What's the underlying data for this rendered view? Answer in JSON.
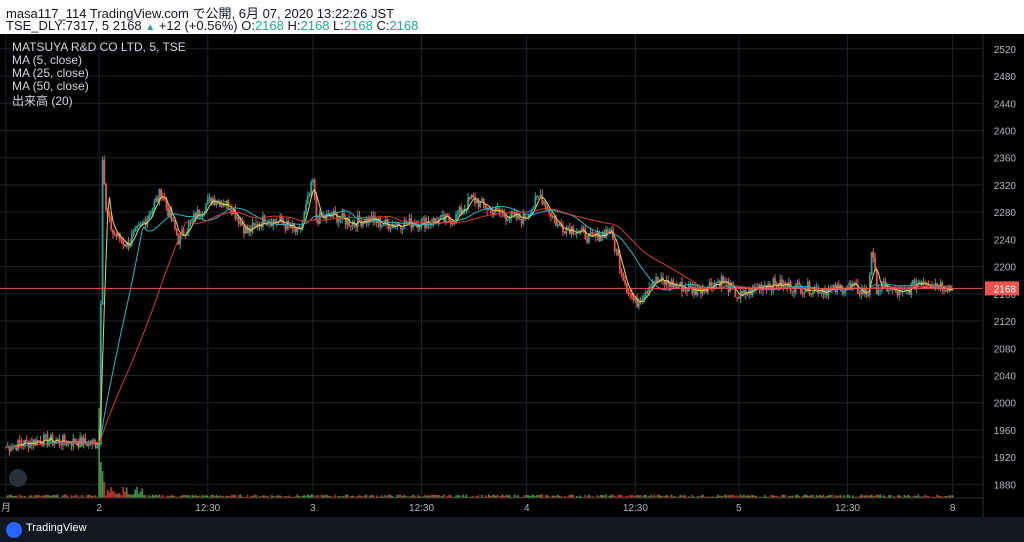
{
  "header": {
    "user": "masa117_114",
    "site": "TradingView.com",
    "published_text": "で公開, 6月 07, 2020 13:22:26 JST",
    "symbol": "TSE_DLY:7317, 5",
    "last": "2168",
    "change": "+12 (+0.56%)",
    "o_label": "O:",
    "o_value": "2168",
    "h_label": "H:",
    "h_value": "2168",
    "l_label": "L:",
    "l_value": "2168",
    "c_label": "C:",
    "c_value": "2168"
  },
  "legend": {
    "title": "MATSUYA R&D CO LTD, 5, TSE",
    "ma5": "MA (5, close)",
    "ma25": "MA (25, close)",
    "ma50": "MA (50, close)",
    "volume": "出来高 (20)"
  },
  "price_label": "2168",
  "footer": {
    "brand": "TradingView"
  },
  "colors": {
    "up": "#26a69a",
    "down": "#ef5350",
    "ma5": "#e8d44d",
    "ma25": "#26b5c9",
    "ma50": "#d8392b",
    "vol_up": "#4caf50",
    "vol_down": "#e53935",
    "price_line": "#ef5350"
  },
  "chart_data": {
    "type": "candlestick",
    "y_ticks": [
      1880,
      1920,
      1960,
      2000,
      2040,
      2080,
      2120,
      2160,
      2200,
      2240,
      2280,
      2320,
      2360,
      2400,
      2440,
      2480,
      2520
    ],
    "ylim": [
      1860,
      2530
    ],
    "x_ticks": [
      {
        "label": "月",
        "t": 0
      },
      {
        "label": "2",
        "t": 54
      },
      {
        "label": "12:30",
        "t": 117
      },
      {
        "label": "3",
        "t": 178
      },
      {
        "label": "12:30",
        "t": 241
      },
      {
        "label": "4",
        "t": 302
      },
      {
        "label": "12:30",
        "t": 365
      },
      {
        "label": "5",
        "t": 425
      },
      {
        "label": "12:30",
        "t": 488
      },
      {
        "label": "8",
        "t": 549
      }
    ],
    "xlim": [
      0,
      555
    ],
    "last_price": 2168,
    "segments": {
      "times": [
        0,
        20,
        40,
        54,
        56,
        58,
        62,
        70,
        80,
        90,
        100,
        110,
        120,
        130,
        140,
        150,
        160,
        170,
        178,
        180,
        190,
        200,
        210,
        220,
        240,
        260,
        270,
        280,
        290,
        300,
        310,
        320,
        330,
        340,
        350,
        360,
        365,
        375,
        385,
        400,
        415,
        425,
        440,
        460,
        480,
        488,
        500,
        502,
        505,
        510,
        520,
        530,
        540,
        549
      ],
      "close": [
        1935,
        1945,
        1942,
        1940,
        2365,
        2280,
        2250,
        2232,
        2265,
        2310,
        2240,
        2275,
        2300,
        2290,
        2250,
        2270,
        2265,
        2248,
        2325,
        2270,
        2275,
        2265,
        2270,
        2262,
        2265,
        2270,
        2300,
        2285,
        2275,
        2270,
        2305,
        2260,
        2255,
        2240,
        2255,
        2170,
        2145,
        2180,
        2175,
        2165,
        2180,
        2155,
        2175,
        2170,
        2165,
        2172,
        2160,
        2225,
        2168,
        2170,
        2158,
        2180,
        2175,
        2168
      ]
    },
    "moving_averages": [
      {
        "name": "MA (5, close)",
        "period": 5
      },
      {
        "name": "MA (25, close)",
        "period": 25
      },
      {
        "name": "MA (50, close)",
        "period": 50
      }
    ],
    "volume": {
      "spike_times": [
        54,
        55,
        56,
        57
      ],
      "spike_values": [
        100,
        40,
        30,
        18
      ]
    }
  }
}
